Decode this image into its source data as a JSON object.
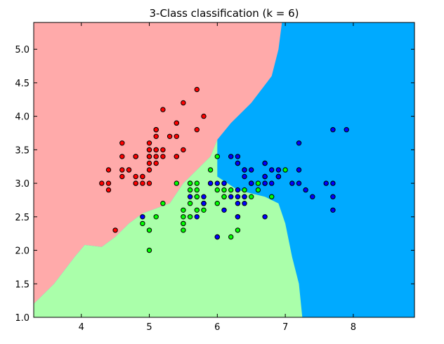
{
  "chart_data": {
    "type": "scatter",
    "title": "3-Class classification (k = 6)",
    "xlabel": "",
    "ylabel": "",
    "xlim": [
      3.3,
      8.9
    ],
    "ylim": [
      1.0,
      5.4
    ],
    "x_ticks": [
      4,
      5,
      6,
      7,
      8
    ],
    "y_ticks": [
      1.0,
      1.5,
      2.0,
      2.5,
      3.0,
      3.5,
      4.0,
      4.5,
      5.0
    ],
    "grid": false,
    "legend": "none",
    "colors": {
      "region_class_0": "#ffaaaa",
      "region_class_1": "#aaffaa",
      "region_class_2": "#00aaff",
      "point_class_0": "#ff0000",
      "point_class_1": "#00ff00",
      "point_class_2": "#0000ff",
      "point_edge": "#000000"
    },
    "decision_regions": {
      "red_green_boundary": [
        [
          3.3,
          1.2
        ],
        [
          3.6,
          1.5
        ],
        [
          3.9,
          1.9
        ],
        [
          4.05,
          2.08
        ],
        [
          4.3,
          2.05
        ],
        [
          4.5,
          2.2
        ],
        [
          4.7,
          2.4
        ],
        [
          4.9,
          2.55
        ],
        [
          5.3,
          2.7
        ],
        [
          5.5,
          3.0
        ],
        [
          5.9,
          3.4
        ],
        [
          6.0,
          3.65
        ]
      ],
      "red_blue_boundary": [
        [
          6.0,
          3.65
        ],
        [
          6.2,
          3.9
        ],
        [
          6.5,
          4.2
        ],
        [
          6.8,
          4.6
        ],
        [
          6.9,
          5.0
        ],
        [
          6.95,
          5.4
        ]
      ],
      "green_blue_boundary": [
        [
          6.0,
          3.65
        ],
        [
          6.0,
          3.1
        ],
        [
          6.3,
          2.9
        ],
        [
          6.7,
          2.8
        ],
        [
          6.9,
          2.7
        ],
        [
          7.0,
          2.4
        ],
        [
          7.1,
          1.9
        ],
        [
          7.2,
          1.5
        ],
        [
          7.25,
          1.0
        ]
      ]
    },
    "series": [
      {
        "class": 0,
        "points": [
          [
            5.1,
            3.5
          ],
          [
            4.9,
            3.0
          ],
          [
            4.7,
            3.2
          ],
          [
            4.6,
            3.1
          ],
          [
            5.0,
            3.6
          ],
          [
            5.4,
            3.9
          ],
          [
            4.6,
            3.4
          ],
          [
            5.0,
            3.4
          ],
          [
            4.4,
            2.9
          ],
          [
            4.9,
            3.1
          ],
          [
            5.4,
            3.7
          ],
          [
            4.8,
            3.4
          ],
          [
            4.8,
            3.0
          ],
          [
            4.3,
            3.0
          ],
          [
            5.8,
            4.0
          ],
          [
            5.7,
            4.4
          ],
          [
            5.4,
            3.9
          ],
          [
            5.1,
            3.5
          ],
          [
            5.7,
            3.8
          ],
          [
            5.1,
            3.8
          ],
          [
            5.4,
            3.4
          ],
          [
            5.1,
            3.7
          ],
          [
            4.6,
            3.6
          ],
          [
            5.1,
            3.3
          ],
          [
            4.8,
            3.4
          ],
          [
            5.0,
            3.0
          ],
          [
            5.0,
            3.4
          ],
          [
            5.2,
            3.5
          ],
          [
            5.2,
            3.4
          ],
          [
            4.7,
            3.2
          ],
          [
            4.8,
            3.1
          ],
          [
            5.4,
            3.4
          ],
          [
            5.2,
            4.1
          ],
          [
            5.5,
            4.2
          ],
          [
            4.9,
            3.1
          ],
          [
            5.0,
            3.2
          ],
          [
            5.5,
            3.5
          ],
          [
            4.4,
            3.0
          ],
          [
            5.1,
            3.4
          ],
          [
            5.0,
            3.5
          ],
          [
            4.5,
            2.3
          ],
          [
            4.4,
            3.2
          ],
          [
            5.0,
            3.5
          ],
          [
            5.1,
            3.8
          ],
          [
            4.8,
            3.0
          ],
          [
            5.1,
            3.8
          ],
          [
            4.6,
            3.2
          ],
          [
            5.3,
            3.7
          ],
          [
            5.0,
            3.3
          ],
          [
            4.8,
            3.4
          ]
        ]
      },
      {
        "class": 1,
        "points": [
          [
            7.0,
            3.2
          ],
          [
            6.4,
            3.2
          ],
          [
            6.9,
            3.1
          ],
          [
            5.5,
            2.3
          ],
          [
            6.5,
            2.8
          ],
          [
            5.7,
            2.8
          ],
          [
            6.3,
            3.3
          ],
          [
            4.9,
            2.4
          ],
          [
            6.6,
            2.9
          ],
          [
            5.2,
            2.7
          ],
          [
            5.0,
            2.0
          ],
          [
            5.9,
            3.0
          ],
          [
            6.0,
            2.2
          ],
          [
            6.1,
            2.9
          ],
          [
            5.6,
            2.9
          ],
          [
            6.7,
            3.1
          ],
          [
            5.6,
            3.0
          ],
          [
            5.8,
            2.7
          ],
          [
            6.2,
            2.2
          ],
          [
            5.6,
            2.5
          ],
          [
            5.9,
            3.2
          ],
          [
            6.1,
            2.8
          ],
          [
            6.3,
            2.5
          ],
          [
            6.1,
            2.8
          ],
          [
            6.4,
            2.9
          ],
          [
            6.6,
            3.0
          ],
          [
            6.8,
            2.8
          ],
          [
            6.7,
            3.0
          ],
          [
            6.0,
            2.9
          ],
          [
            5.7,
            2.6
          ],
          [
            5.5,
            2.4
          ],
          [
            5.5,
            2.4
          ],
          [
            5.8,
            2.7
          ],
          [
            6.0,
            2.7
          ],
          [
            5.4,
            3.0
          ],
          [
            6.0,
            3.4
          ],
          [
            6.7,
            3.1
          ],
          [
            6.3,
            2.3
          ],
          [
            5.6,
            3.0
          ],
          [
            5.5,
            2.5
          ],
          [
            5.5,
            2.6
          ],
          [
            6.1,
            3.0
          ],
          [
            5.8,
            2.6
          ],
          [
            5.0,
            2.3
          ],
          [
            5.6,
            2.7
          ],
          [
            5.7,
            3.0
          ],
          [
            5.7,
            2.9
          ],
          [
            6.2,
            2.9
          ],
          [
            5.1,
            2.5
          ],
          [
            5.7,
            2.8
          ]
        ]
      },
      {
        "class": 2,
        "points": [
          [
            6.3,
            3.3
          ],
          [
            5.8,
            2.7
          ],
          [
            7.1,
            3.0
          ],
          [
            6.3,
            2.9
          ],
          [
            6.5,
            3.0
          ],
          [
            7.6,
            3.0
          ],
          [
            4.9,
            2.5
          ],
          [
            7.3,
            2.9
          ],
          [
            6.7,
            2.5
          ],
          [
            7.2,
            3.6
          ],
          [
            6.5,
            3.2
          ],
          [
            6.4,
            2.7
          ],
          [
            6.8,
            3.0
          ],
          [
            5.7,
            2.5
          ],
          [
            5.8,
            2.8
          ],
          [
            6.4,
            3.2
          ],
          [
            6.5,
            3.0
          ],
          [
            7.7,
            3.8
          ],
          [
            7.7,
            2.6
          ],
          [
            6.0,
            2.2
          ],
          [
            6.9,
            3.2
          ],
          [
            5.6,
            2.8
          ],
          [
            7.7,
            2.8
          ],
          [
            6.3,
            2.7
          ],
          [
            6.7,
            3.3
          ],
          [
            7.2,
            3.2
          ],
          [
            6.2,
            2.8
          ],
          [
            6.1,
            3.0
          ],
          [
            6.4,
            2.8
          ],
          [
            7.2,
            3.0
          ],
          [
            7.4,
            2.8
          ],
          [
            7.9,
            3.8
          ],
          [
            6.4,
            2.8
          ],
          [
            6.3,
            2.8
          ],
          [
            6.1,
            2.6
          ],
          [
            7.7,
            3.0
          ],
          [
            6.3,
            3.4
          ],
          [
            6.4,
            3.1
          ],
          [
            6.0,
            3.0
          ],
          [
            6.9,
            3.1
          ],
          [
            6.7,
            3.1
          ],
          [
            6.9,
            3.1
          ],
          [
            5.8,
            2.7
          ],
          [
            6.8,
            3.2
          ],
          [
            6.7,
            3.3
          ],
          [
            6.7,
            3.0
          ],
          [
            6.3,
            2.5
          ],
          [
            6.5,
            3.0
          ],
          [
            6.2,
            3.4
          ],
          [
            5.9,
            3.0
          ]
        ]
      }
    ]
  }
}
